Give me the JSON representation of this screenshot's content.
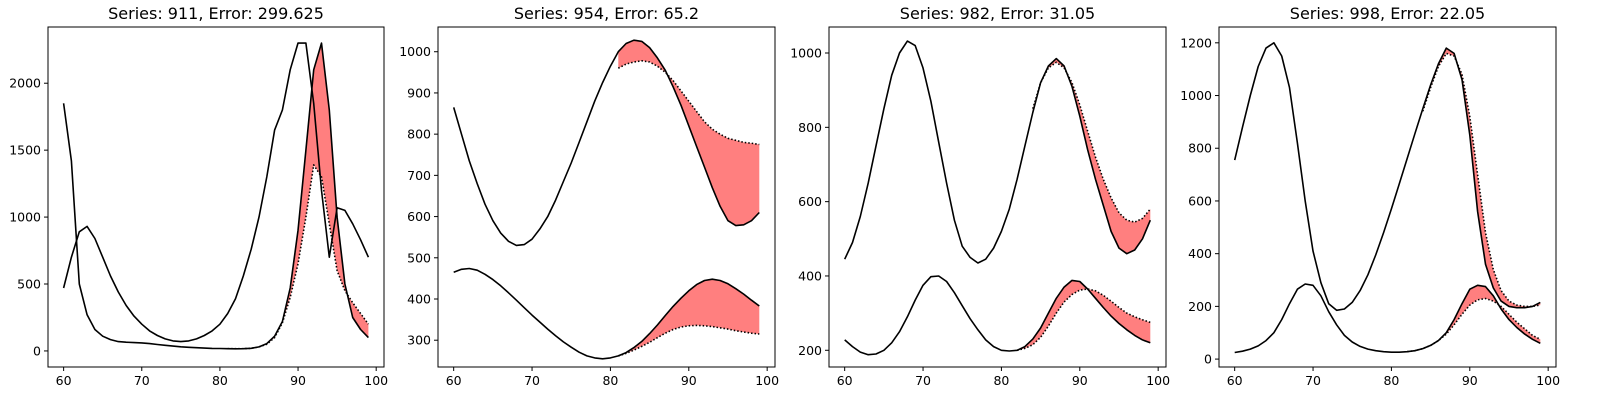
{
  "chart_data": [
    {
      "type": "line",
      "title": "Series: 911, Error: 299.625",
      "xlim": [
        58,
        101
      ],
      "ylim": [
        -120,
        2420
      ],
      "xticks": [
        60,
        70,
        80,
        90,
        100
      ],
      "yticks": [
        0,
        500,
        1000,
        1500,
        2000
      ],
      "fill_color": "#ff0000",
      "series": [
        {
          "style": "solid",
          "x": [
            60,
            61,
            62,
            63,
            64,
            65,
            66,
            67,
            68,
            69,
            70,
            71,
            72,
            73,
            74,
            75,
            76,
            77,
            78,
            79,
            80,
            81,
            82,
            83,
            84,
            85,
            86,
            87,
            88,
            89,
            90,
            91,
            92,
            93,
            94,
            95,
            96,
            97,
            98,
            99
          ],
          "y": [
            1850,
            1420,
            500,
            270,
            160,
            110,
            85,
            70,
            65,
            62,
            60,
            55,
            48,
            42,
            36,
            31,
            27,
            24,
            21,
            19,
            18,
            17,
            16,
            17,
            20,
            30,
            55,
            110,
            220,
            470,
            900,
            1500,
            2100,
            2300,
            1800,
            1000,
            500,
            250,
            160,
            100
          ]
        },
        {
          "style": "solid",
          "x": [
            60,
            61,
            62,
            63,
            64,
            65,
            66,
            67,
            68,
            69,
            70,
            71,
            72,
            73,
            74,
            75,
            76,
            77,
            78,
            79,
            80,
            81,
            82,
            83,
            84,
            85,
            86,
            87,
            88,
            89,
            90,
            91,
            92,
            93,
            94,
            95,
            96,
            97,
            98,
            99
          ],
          "y": [
            470,
            700,
            890,
            930,
            840,
            700,
            560,
            440,
            340,
            260,
            200,
            150,
            115,
            90,
            75,
            70,
            75,
            90,
            115,
            150,
            200,
            280,
            390,
            560,
            760,
            1000,
            1300,
            1650,
            1800,
            2100,
            2300,
            2300,
            1850,
            1200,
            700,
            1070,
            1050,
            950,
            830,
            700
          ]
        },
        {
          "style": "dotted",
          "x": [
            81,
            82,
            83,
            84,
            85,
            86,
            87,
            88,
            89,
            90,
            91,
            92,
            93,
            94,
            95,
            96,
            97,
            98,
            99
          ],
          "y": [
            17,
            17,
            17,
            20,
            30,
            50,
            100,
            210,
            400,
            650,
            1000,
            1390,
            1300,
            950,
            600,
            450,
            360,
            280,
            200
          ]
        }
      ]
    },
    {
      "type": "line",
      "title": "Series: 954, Error: 65.2",
      "xlim": [
        58,
        101
      ],
      "ylim": [
        235,
        1060
      ],
      "xticks": [
        60,
        70,
        80,
        90,
        100
      ],
      "yticks": [
        300,
        400,
        500,
        600,
        700,
        800,
        900,
        1000
      ],
      "fill_color": "#ff0000",
      "series": [
        {
          "style": "solid",
          "x": [
            60,
            61,
            62,
            63,
            64,
            65,
            66,
            67,
            68,
            69,
            70,
            71,
            72,
            73,
            74,
            75,
            76,
            77,
            78,
            79,
            80,
            81,
            82,
            83,
            84,
            85,
            86,
            87,
            88,
            89,
            90,
            91,
            92,
            93,
            94,
            95,
            96,
            97,
            98,
            99
          ],
          "y": [
            865,
            800,
            735,
            680,
            630,
            590,
            560,
            540,
            530,
            532,
            545,
            570,
            600,
            640,
            685,
            730,
            780,
            830,
            880,
            925,
            965,
            1000,
            1020,
            1028,
            1025,
            1010,
            985,
            955,
            915,
            870,
            820,
            770,
            720,
            670,
            625,
            590,
            578,
            580,
            590,
            610
          ]
        },
        {
          "style": "solid",
          "x": [
            60,
            61,
            62,
            63,
            64,
            65,
            66,
            67,
            68,
            69,
            70,
            71,
            72,
            73,
            74,
            75,
            76,
            77,
            78,
            79,
            80,
            81,
            82,
            83,
            84,
            85,
            86,
            87,
            88,
            89,
            90,
            91,
            92,
            93,
            94,
            95,
            96,
            97,
            98,
            99
          ],
          "y": [
            465,
            472,
            474,
            470,
            460,
            447,
            432,
            415,
            397,
            379,
            361,
            344,
            327,
            311,
            296,
            283,
            271,
            262,
            257,
            255,
            257,
            262,
            270,
            282,
            297,
            316,
            337,
            360,
            382,
            402,
            420,
            435,
            445,
            448,
            445,
            437,
            425,
            412,
            397,
            383
          ]
        },
        {
          "style": "dotted",
          "x": [
            81,
            82,
            83,
            84,
            85,
            86,
            87,
            88,
            89,
            90,
            91,
            92,
            93,
            94,
            95,
            96,
            97,
            98,
            99
          ],
          "y": [
            960,
            970,
            975,
            978,
            975,
            965,
            950,
            930,
            905,
            880,
            855,
            830,
            812,
            800,
            790,
            785,
            780,
            778,
            775
          ]
        },
        {
          "style": "dotted",
          "x": [
            81,
            82,
            83,
            84,
            85,
            86,
            87,
            88,
            89,
            90,
            91,
            92,
            93,
            94,
            95,
            96,
            97,
            98,
            99
          ],
          "y": [
            262,
            268,
            276,
            285,
            295,
            306,
            317,
            326,
            332,
            335,
            336,
            335,
            333,
            330,
            327,
            323,
            320,
            317,
            315
          ]
        }
      ]
    },
    {
      "type": "line",
      "title": "Series: 982, Error: 31.05",
      "xlim": [
        58,
        101
      ],
      "ylim": [
        155,
        1070
      ],
      "xticks": [
        60,
        70,
        80,
        90,
        100
      ],
      "yticks": [
        200,
        400,
        600,
        800,
        1000
      ],
      "fill_color": "#ff0000",
      "series": [
        {
          "style": "solid",
          "x": [
            60,
            61,
            62,
            63,
            64,
            65,
            66,
            67,
            68,
            69,
            70,
            71,
            72,
            73,
            74,
            75,
            76,
            77,
            78,
            79,
            80,
            81,
            82,
            83,
            84,
            85,
            86,
            87,
            88,
            89,
            90,
            91,
            92,
            93,
            94,
            95,
            96,
            97,
            98,
            99
          ],
          "y": [
            445,
            490,
            560,
            650,
            750,
            850,
            940,
            1000,
            1032,
            1020,
            960,
            870,
            760,
            650,
            550,
            480,
            450,
            435,
            445,
            475,
            520,
            580,
            660,
            750,
            840,
            920,
            965,
            985,
            965,
            910,
            830,
            740,
            660,
            590,
            520,
            475,
            460,
            470,
            500,
            550
          ]
        },
        {
          "style": "solid",
          "x": [
            60,
            61,
            62,
            63,
            64,
            65,
            66,
            67,
            68,
            69,
            70,
            71,
            72,
            73,
            74,
            75,
            76,
            77,
            78,
            79,
            80,
            81,
            82,
            83,
            84,
            85,
            86,
            87,
            88,
            89,
            90,
            91,
            92,
            93,
            94,
            95,
            96,
            97,
            98,
            99
          ],
          "y": [
            228,
            210,
            195,
            188,
            190,
            200,
            220,
            250,
            290,
            335,
            375,
            398,
            400,
            385,
            355,
            320,
            285,
            255,
            228,
            210,
            200,
            198,
            200,
            210,
            230,
            260,
            300,
            340,
            370,
            388,
            385,
            365,
            340,
            315,
            292,
            272,
            255,
            240,
            228,
            220
          ]
        },
        {
          "style": "dotted",
          "x": [
            84,
            85,
            86,
            87,
            88,
            89,
            90,
            91,
            92,
            93,
            94,
            95,
            96,
            97,
            98,
            99
          ],
          "y": [
            850,
            920,
            960,
            975,
            960,
            920,
            860,
            790,
            720,
            660,
            610,
            570,
            550,
            545,
            555,
            580
          ]
        },
        {
          "style": "dotted",
          "x": [
            82,
            83,
            84,
            85,
            86,
            87,
            88,
            89,
            90,
            91,
            92,
            93,
            94,
            95,
            96,
            97,
            98,
            99
          ],
          "y": [
            200,
            205,
            215,
            235,
            265,
            300,
            330,
            350,
            362,
            365,
            360,
            348,
            332,
            315,
            300,
            290,
            282,
            275
          ]
        }
      ]
    },
    {
      "type": "line",
      "title": "Series: 998, Error: 22.05",
      "xlim": [
        58,
        101
      ],
      "ylim": [
        -30,
        1260
      ],
      "xticks": [
        60,
        70,
        80,
        90,
        100
      ],
      "yticks": [
        0,
        200,
        400,
        600,
        800,
        1000,
        1200
      ],
      "fill_color": "#ff0000",
      "series": [
        {
          "style": "solid",
          "x": [
            60,
            61,
            62,
            63,
            64,
            65,
            66,
            67,
            68,
            69,
            70,
            71,
            72,
            73,
            74,
            75,
            76,
            77,
            78,
            79,
            80,
            81,
            82,
            83,
            84,
            85,
            86,
            87,
            88,
            89,
            90,
            91,
            92,
            93,
            94,
            95,
            96,
            97,
            98,
            99
          ],
          "y": [
            755,
            880,
            1000,
            1110,
            1180,
            1200,
            1150,
            1030,
            820,
            600,
            410,
            290,
            210,
            185,
            190,
            215,
            260,
            320,
            395,
            480,
            570,
            665,
            760,
            855,
            950,
            1040,
            1120,
            1180,
            1160,
            1060,
            850,
            560,
            360,
            270,
            220,
            200,
            195,
            195,
            200,
            215
          ]
        },
        {
          "style": "solid",
          "x": [
            60,
            61,
            62,
            63,
            64,
            65,
            66,
            67,
            68,
            69,
            70,
            71,
            72,
            73,
            74,
            75,
            76,
            77,
            78,
            79,
            80,
            81,
            82,
            83,
            84,
            85,
            86,
            87,
            88,
            89,
            90,
            91,
            92,
            93,
            94,
            95,
            96,
            97,
            98,
            99
          ],
          "y": [
            25,
            30,
            38,
            50,
            70,
            100,
            150,
            210,
            265,
            285,
            280,
            240,
            180,
            130,
            90,
            65,
            48,
            38,
            32,
            28,
            26,
            26,
            28,
            32,
            40,
            52,
            70,
            100,
            150,
            210,
            265,
            280,
            275,
            240,
            190,
            150,
            120,
            95,
            75,
            60
          ]
        },
        {
          "style": "dotted",
          "x": [
            84,
            85,
            86,
            87,
            88,
            89,
            90,
            91,
            92,
            93,
            94,
            95,
            96,
            97,
            98,
            99
          ],
          "y": [
            940,
            1030,
            1110,
            1160,
            1150,
            1080,
            920,
            700,
            480,
            340,
            260,
            220,
            205,
            200,
            200,
            205
          ]
        },
        {
          "style": "dotted",
          "x": [
            82,
            83,
            84,
            85,
            86,
            87,
            88,
            89,
            90,
            91,
            92,
            93,
            94,
            95,
            96,
            97,
            98,
            99
          ],
          "y": [
            28,
            32,
            40,
            52,
            70,
            95,
            130,
            170,
            205,
            225,
            230,
            220,
            200,
            170,
            140,
            115,
            90,
            75
          ]
        }
      ]
    }
  ]
}
